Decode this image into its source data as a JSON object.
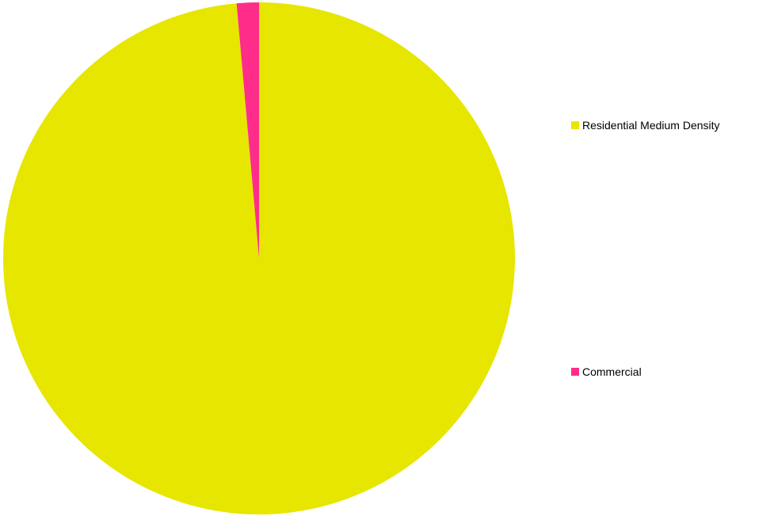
{
  "chart_data": {
    "type": "pie",
    "slices": [
      {
        "label": "Residential Medium Density",
        "value": 98.6,
        "color": "#e6e600"
      },
      {
        "label": "Commercial",
        "value": 1.4,
        "color": "#ff2d8a"
      }
    ],
    "start_angle_deg": 0,
    "direction": "clockwise",
    "legend_position": "right"
  }
}
